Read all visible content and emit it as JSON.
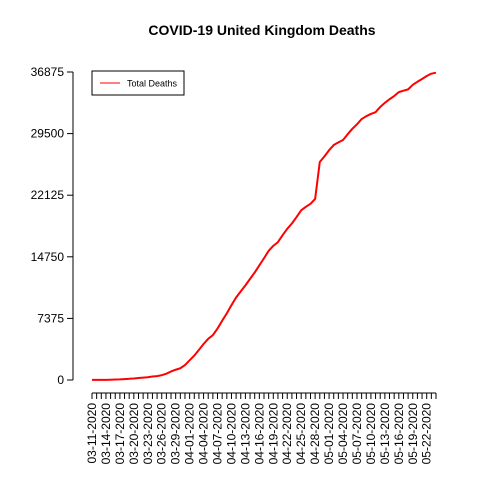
{
  "chart_data": {
    "type": "line",
    "title": "COVID-19 United Kingdom Deaths",
    "xlabel": "",
    "ylabel": "",
    "ylim": [
      0,
      36875
    ],
    "yticks": [
      0,
      7375,
      14750,
      22125,
      29500,
      36875
    ],
    "ytick_labels": [
      "0",
      "7375",
      "14750",
      "22125",
      "29500",
      "36875"
    ],
    "x": [
      "03-11-2020",
      "03-12-2020",
      "03-13-2020",
      "03-14-2020",
      "03-15-2020",
      "03-16-2020",
      "03-17-2020",
      "03-18-2020",
      "03-19-2020",
      "03-20-2020",
      "03-21-2020",
      "03-22-2020",
      "03-23-2020",
      "03-24-2020",
      "03-25-2020",
      "03-26-2020",
      "03-27-2020",
      "03-28-2020",
      "03-29-2020",
      "03-30-2020",
      "03-31-2020",
      "04-01-2020",
      "04-02-2020",
      "04-03-2020",
      "04-04-2020",
      "04-05-2020",
      "04-06-2020",
      "04-07-2020",
      "04-08-2020",
      "04-09-2020",
      "04-10-2020",
      "04-11-2020",
      "04-12-2020",
      "04-13-2020",
      "04-14-2020",
      "04-15-2020",
      "04-16-2020",
      "04-17-2020",
      "04-18-2020",
      "04-19-2020",
      "04-20-2020",
      "04-21-2020",
      "04-22-2020",
      "04-23-2020",
      "04-24-2020",
      "04-25-2020",
      "04-26-2020",
      "04-27-2020",
      "04-28-2020",
      "04-29-2020",
      "04-30-2020",
      "05-01-2020",
      "05-02-2020",
      "05-03-2020",
      "05-04-2020",
      "05-05-2020",
      "05-06-2020",
      "05-07-2020",
      "05-08-2020",
      "05-09-2020",
      "05-10-2020",
      "05-11-2020",
      "05-12-2020",
      "05-13-2020",
      "05-14-2020",
      "05-15-2020",
      "05-16-2020",
      "05-17-2020",
      "05-18-2020",
      "05-19-2020",
      "05-20-2020",
      "05-21-2020",
      "05-22-2020",
      "05-23-2020",
      "05-24-2020"
    ],
    "tick_label_dates": [
      "03-11-2020",
      "03-14-2020",
      "03-17-2020",
      "03-20-2020",
      "03-23-2020",
      "03-26-2020",
      "03-29-2020",
      "04-01-2020",
      "04-04-2020",
      "04-07-2020",
      "04-10-2020",
      "04-13-2020",
      "04-16-2020",
      "04-19-2020",
      "04-22-2020",
      "04-25-2020",
      "04-28-2020",
      "05-01-2020",
      "05-04-2020",
      "05-07-2020",
      "05-10-2020",
      "05-13-2020",
      "05-16-2020",
      "05-19-2020",
      "05-22-2020"
    ],
    "series": [
      {
        "name": "Total Deaths",
        "color": "#ff0000",
        "values": [
          8,
          8,
          10,
          21,
          35,
          55,
          71,
          104,
          144,
          177,
          233,
          281,
          335,
          422,
          465,
          578,
          759,
          1019,
          1228,
          1408,
          1789,
          2352,
          2921,
          3605,
          4313,
          4934,
          5373,
          6159,
          7097,
          7978,
          8958,
          9875,
          10612,
          11329,
          12107,
          12868,
          13729,
          14576,
          15464,
          16060,
          16509,
          17337,
          18100,
          18738,
          19506,
          20319,
          20732,
          21092,
          21678,
          26097,
          26771,
          27510,
          28131,
          28446,
          28734,
          29427,
          30076,
          30615,
          31241,
          31587,
          31855,
          32065,
          32692,
          33186,
          33614,
          33998,
          34466,
          34636,
          34796,
          35341,
          35704,
          36042,
          36393,
          36675,
          36793
        ]
      }
    ],
    "legend": {
      "position": "top-left",
      "entries": [
        "Total Deaths"
      ]
    },
    "grid": false
  }
}
